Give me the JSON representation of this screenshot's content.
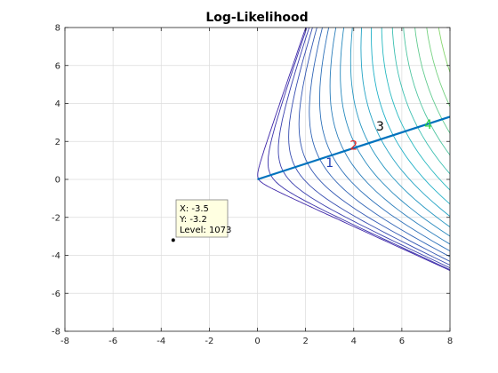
{
  "chart_data": {
    "type": "line",
    "title": "Log-Likelihood",
    "xlabel": "",
    "ylabel": "",
    "xlim": [
      -8,
      8
    ],
    "ylim": [
      -8,
      8
    ],
    "x_ticks": [
      -8,
      -6,
      -4,
      -2,
      0,
      2,
      4,
      6,
      8
    ],
    "y_ticks": [
      -8,
      -6,
      -4,
      -2,
      0,
      2,
      4,
      6,
      8
    ],
    "x_tick_labels": [
      "-8",
      "-6",
      "-4",
      "-2",
      "0",
      "2",
      "4",
      "6",
      "8"
    ],
    "y_tick_labels": [
      "-8",
      "-6",
      "-4",
      "-2",
      "0",
      "2",
      "4",
      "6",
      "8"
    ],
    "grid": true,
    "contours": {
      "count": 24,
      "colormap": "parula",
      "colors": [
        "#3e26a8",
        "#1fb6c8",
        "#f9fb0e"
      ]
    },
    "path_line": {
      "x": [
        0,
        8
      ],
      "y": [
        0,
        3.3
      ],
      "color": "#0072bd"
    },
    "markers": [
      {
        "label": "1",
        "x": 3.0,
        "y": 0.9,
        "color": "#1e3cb4"
      },
      {
        "label": "2",
        "x": 4.0,
        "y": 1.8,
        "color": "#e02020"
      },
      {
        "label": "3",
        "x": 5.1,
        "y": 2.8,
        "color": "#000000"
      },
      {
        "label": "4",
        "x": 7.1,
        "y": 2.9,
        "color": "#28d040"
      }
    ],
    "datatip": {
      "x": -3.5,
      "y": -3.2,
      "lines": [
        "X: -3.5",
        "Y: -3.2",
        "Level: 1073"
      ]
    }
  }
}
